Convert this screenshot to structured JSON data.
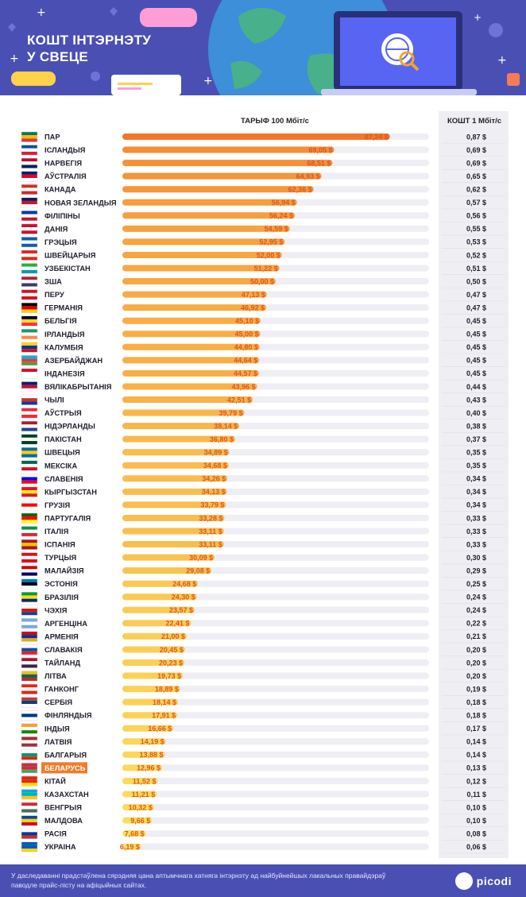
{
  "header": {
    "title_line1": "КОШТ ІНТЭРНЭТУ",
    "title_line2": "У СВЕЦЕ"
  },
  "colors": {
    "header_bg": "#4a50b3",
    "bar_high": "#f4762a",
    "bar_low": "#fde25e",
    "value_text": "#e0571d",
    "highlight": "#f07b2a",
    "track": "#eeeef4",
    "cost_col_bg": "#efeff3"
  },
  "chart_data": {
    "type": "bar",
    "orientation": "horizontal",
    "title": "",
    "value_header": "ТАРЫФ 100 Мбіт/с",
    "cost_header": "КОШТ 1 Мбіт/с",
    "highlighted": "БЕЛАРУСЬ",
    "xlim": [
      0,
      100
    ],
    "categories": [
      "ПАР",
      "ІСЛАНДЫЯ",
      "НАРВЕГІЯ",
      "АЎСТРАЛІЯ",
      "КАНАДА",
      "НОВАЯ ЗЕЛАНДЫЯ",
      "ФІЛІПІНЫ",
      "ДАНІЯ",
      "ГРЭЦЫЯ",
      "ШВЕЙЦАРЫЯ",
      "УЗБЕКІСТАН",
      "ЗША",
      "ПЕРУ",
      "ГЕРМАНІЯ",
      "БЕЛЬГІЯ",
      "ІРЛАНДЫЯ",
      "КАЛУМБІЯ",
      "АЗЕРБАЙДЖАН",
      "ІНДАНЕЗІЯ",
      "ВЯЛІКАБРЫТАНІЯ",
      "ЧЫЛІ",
      "АЎСТРЫЯ",
      "НІДЭРЛАНДЫ",
      "ПАКІСТАН",
      "ШВЕЦЫЯ",
      "МЕКСІКА",
      "СЛАВЕНІЯ",
      "КЫРГЫЗСТАН",
      "ГРУЗІЯ",
      "ПАРТУГАЛІЯ",
      "ІТАЛІЯ",
      "ІСПАНІЯ",
      "ТУРЦЫЯ",
      "МАЛАЙЗІЯ",
      "ЭСТОНІЯ",
      "БРАЗІЛІЯ",
      "ЧЭХІЯ",
      "АРГЕНЦІНА",
      "АРМЕНІЯ",
      "СЛАВАКІЯ",
      "ТАЙЛАНД",
      "ЛІТВА",
      "ГАНКОНГ",
      "СЕРБІЯ",
      "ФІНЛЯНДЫЯ",
      "ІНДЫЯ",
      "ЛАТВІЯ",
      "БАЛГАРЫЯ",
      "БЕЛАРУСЬ",
      "КІТАЙ",
      "КАЗАХСТАН",
      "ВЕНГРЫЯ",
      "МАЛДОВА",
      "РАСІЯ",
      "УКРАІНА"
    ],
    "values": [
      87.24,
      69.05,
      68.51,
      64.93,
      62.36,
      56.94,
      56.24,
      54.59,
      52.95,
      52.0,
      51.22,
      50.0,
      47.13,
      46.92,
      45.1,
      45.0,
      44.8,
      44.64,
      44.57,
      43.96,
      42.51,
      39.79,
      38.14,
      36.8,
      34.89,
      34.68,
      34.26,
      34.13,
      33.79,
      33.28,
      33.11,
      33.11,
      30.09,
      29.08,
      24.68,
      24.3,
      23.57,
      22.41,
      21.0,
      20.45,
      20.23,
      19.73,
      18.89,
      18.14,
      17.91,
      16.66,
      14.19,
      13.88,
      12.96,
      11.52,
      11.21,
      10.32,
      9.66,
      7.68,
      6.19
    ],
    "value_labels": [
      "87,24 $",
      "69,05 $",
      "68,51 $",
      "64,93 $",
      "62,36 $",
      "56,94 $",
      "56,24 $",
      "54,59 $",
      "52,95 $",
      "52,00 $",
      "51,22 $",
      "50,00 $",
      "47,13 $",
      "46,92 $",
      "45,10 $",
      "45,00 $",
      "44,80 $",
      "44,64 $",
      "44,57 $",
      "43,96 $",
      "42,51 $",
      "39,79 $",
      "38,14 $",
      "36,80 $",
      "34,89 $",
      "34,68 $",
      "34,26 $",
      "34,13 $",
      "33,79 $",
      "33,28 $",
      "33,11 $",
      "33,11 $",
      "30,09 $",
      "29,08 $",
      "24,68 $",
      "24,30 $",
      "23,57 $",
      "22,41 $",
      "21,00 $",
      "20,45 $",
      "20,23 $",
      "19,73 $",
      "18,89 $",
      "18,14 $",
      "17,91 $",
      "16,66 $",
      "14,19 $",
      "13,88 $",
      "12,96 $",
      "11,52 $",
      "11,21 $",
      "10,32 $",
      "9,66 $",
      "7,68 $",
      "6,19 $"
    ],
    "cost_labels": [
      "0,87 $",
      "0,69 $",
      "0,69 $",
      "0,65 $",
      "0,62 $",
      "0,57 $",
      "0,56 $",
      "0,55 $",
      "0,53 $",
      "0,52 $",
      "0,51 $",
      "0,50 $",
      "0,47 $",
      "0,47 $",
      "0,45 $",
      "0,45 $",
      "0,45 $",
      "0,45 $",
      "0,45 $",
      "0,44 $",
      "0,43 $",
      "0,40 $",
      "0,38 $",
      "0,37 $",
      "0,35 $",
      "0,35 $",
      "0,34 $",
      "0,34 $",
      "0,34 $",
      "0,33 $",
      "0,33 $",
      "0,33 $",
      "0,30 $",
      "0,29 $",
      "0,25 $",
      "0,24 $",
      "0,24 $",
      "0,22 $",
      "0,21 $",
      "0,20 $",
      "0,20 $",
      "0,20 $",
      "0,19 $",
      "0,18 $",
      "0,18 $",
      "0,17 $",
      "0,14 $",
      "0,14 $",
      "0,13 $",
      "0,12 $",
      "0,11 $",
      "0,10 $",
      "0,10 $",
      "0,08 $",
      "0,06 $"
    ],
    "flags": [
      [
        "#007a4d",
        "#ffb612",
        "#de3831"
      ],
      [
        "#02529c",
        "#ffffff",
        "#dc1e35"
      ],
      [
        "#ba0c2f",
        "#ffffff",
        "#00205b"
      ],
      [
        "#012169",
        "#e4002b",
        "#ffffff"
      ],
      [
        "#d52b1e",
        "#ffffff",
        "#d52b1e"
      ],
      [
        "#012169",
        "#cc142b",
        "#ffffff"
      ],
      [
        "#0038a8",
        "#ffffff",
        "#ce1126"
      ],
      [
        "#c8102e",
        "#ffffff",
        "#c8102e"
      ],
      [
        "#0d5eaf",
        "#ffffff",
        "#0d5eaf"
      ],
      [
        "#da291c",
        "#ffffff",
        "#da291c"
      ],
      [
        "#1eb53a",
        "#ffffff",
        "#0099b5"
      ],
      [
        "#b22234",
        "#ffffff",
        "#3c3b6e"
      ],
      [
        "#d91023",
        "#ffffff",
        "#d91023"
      ],
      [
        "#000000",
        "#dd0000",
        "#ffce00"
      ],
      [
        "#000000",
        "#fdda24",
        "#ef3340"
      ],
      [
        "#169b62",
        "#ffffff",
        "#ff883e"
      ],
      [
        "#fcd116",
        "#003893",
        "#ce1126"
      ],
      [
        "#00b5e2",
        "#ef3340",
        "#509e2f"
      ],
      [
        "#ce1126",
        "#ffffff",
        "#ffffff"
      ],
      [
        "#012169",
        "#c8102e",
        "#ffffff"
      ],
      [
        "#ffffff",
        "#d52b1e",
        "#0039a6"
      ],
      [
        "#ed2939",
        "#ffffff",
        "#ed2939"
      ],
      [
        "#ae1c28",
        "#ffffff",
        "#21468b"
      ],
      [
        "#01411c",
        "#ffffff",
        "#01411c"
      ],
      [
        "#006aa7",
        "#fecc00",
        "#006aa7"
      ],
      [
        "#006847",
        "#ffffff",
        "#ce1126"
      ],
      [
        "#ffffff",
        "#0000ff",
        "#ff0000"
      ],
      [
        "#e8112d",
        "#ffef00",
        "#e8112d"
      ],
      [
        "#ffffff",
        "#ff0000",
        "#ffffff"
      ],
      [
        "#006600",
        "#ff0000",
        "#ffff00"
      ],
      [
        "#009246",
        "#ffffff",
        "#ce2b37"
      ],
      [
        "#aa151b",
        "#f1bf00",
        "#aa151b"
      ],
      [
        "#e30a17",
        "#ffffff",
        "#e30a17"
      ],
      [
        "#cc0001",
        "#ffffff",
        "#010066"
      ],
      [
        "#0072ce",
        "#000000",
        "#ffffff"
      ],
      [
        "#009c3b",
        "#ffdf00",
        "#002776"
      ],
      [
        "#ffffff",
        "#d7141a",
        "#11457e"
      ],
      [
        "#74acdf",
        "#ffffff",
        "#74acdf"
      ],
      [
        "#d90012",
        "#0033a0",
        "#f2a800"
      ],
      [
        "#ffffff",
        "#0b4ea2",
        "#ee1c25"
      ],
      [
        "#a51931",
        "#f4f5f8",
        "#2d2a4a"
      ],
      [
        "#fdb913",
        "#006a44",
        "#c1272d"
      ],
      [
        "#de2910",
        "#ffffff",
        "#de2910"
      ],
      [
        "#c6363c",
        "#0c4076",
        "#ffffff"
      ],
      [
        "#ffffff",
        "#003580",
        "#ffffff"
      ],
      [
        "#ff9933",
        "#ffffff",
        "#138808"
      ],
      [
        "#9e3039",
        "#ffffff",
        "#9e3039"
      ],
      [
        "#ffffff",
        "#00966e",
        "#d62612"
      ],
      [
        "#c8313e",
        "#c8313e",
        "#4aa657"
      ],
      [
        "#de2910",
        "#de2910",
        "#ffde00"
      ],
      [
        "#00afca",
        "#00afca",
        "#fec50c"
      ],
      [
        "#ce2939",
        "#ffffff",
        "#477050"
      ],
      [
        "#0046ae",
        "#ffd200",
        "#cc092f"
      ],
      [
        "#ffffff",
        "#0039a6",
        "#d52b1e"
      ],
      [
        "#005bbb",
        "#005bbb",
        "#ffd500"
      ]
    ]
  },
  "footer": {
    "note": "У даследаванні прадстаўлена сярэдняя цана аптымчнага хатняга інтэрнэту ад найбуйнейшых лакальных правайдэраў паводле прайс-лісту на афіцыйных сайтах.",
    "logo_text": "picodi"
  }
}
